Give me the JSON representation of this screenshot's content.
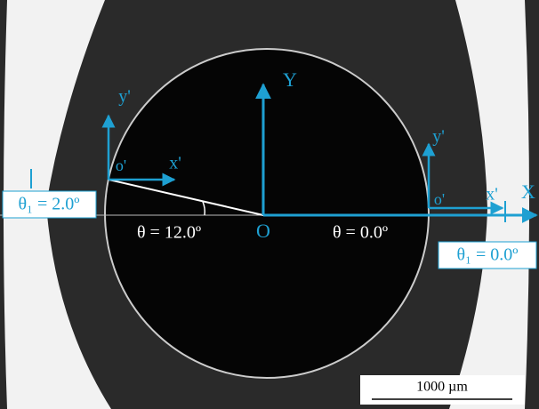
{
  "global_axes": {
    "origin": "O",
    "x_axis": "X",
    "y_axis": "Y"
  },
  "left_point": {
    "origin": "o'",
    "x_axis": "x'",
    "y_axis": "y'",
    "theta_label": "θ = 12.0º",
    "theta1_label": "θ₁ = 2.0º"
  },
  "right_point": {
    "origin": "o'",
    "x_axis": "x'",
    "y_axis": "y'",
    "theta_label": "θ = 0.0º",
    "theta1_label": "θ₁ = 0.0º"
  },
  "scale_bar": {
    "label": "1000 µm"
  }
}
